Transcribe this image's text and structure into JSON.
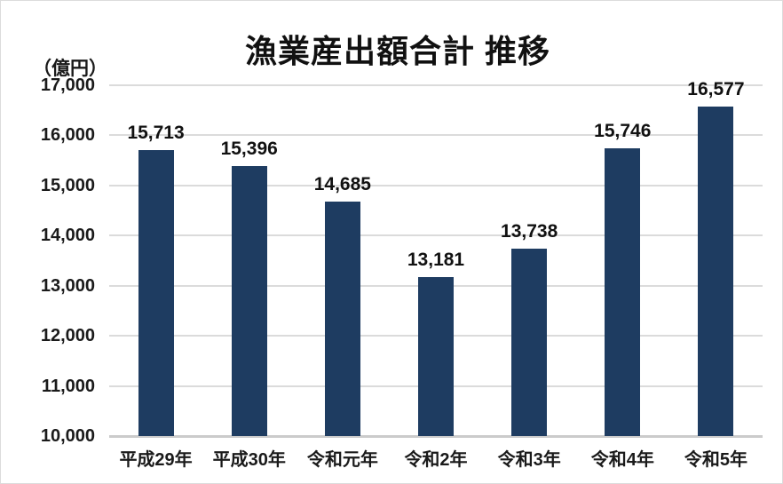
{
  "chart_data": {
    "type": "bar",
    "title": "漁業産出額合計 推移",
    "unit": "（億円）",
    "categories": [
      "平成29年",
      "平成30年",
      "令和元年",
      "令和2年",
      "令和3年",
      "令和4年",
      "令和5年"
    ],
    "values": [
      15713,
      15396,
      14685,
      13181,
      13738,
      15746,
      16577
    ],
    "value_labels": [
      "15,713",
      "15,396",
      "14,685",
      "13,181",
      "13,738",
      "15,746",
      "16,577"
    ],
    "xlabel": "",
    "ylabel": "（億円）",
    "ylim": [
      10000,
      17000
    ],
    "ytick_step": 1000,
    "ytick_labels": [
      "10,000",
      "11,000",
      "12,000",
      "13,000",
      "14,000",
      "15,000",
      "16,000",
      "17,000"
    ],
    "grid": true,
    "legend_position": "none",
    "bar_color": "#1E3C61",
    "gridline_color": "#DBDBDB",
    "axis_line_color": "#CBCBCB",
    "text_color": "#1a1a1a"
  }
}
